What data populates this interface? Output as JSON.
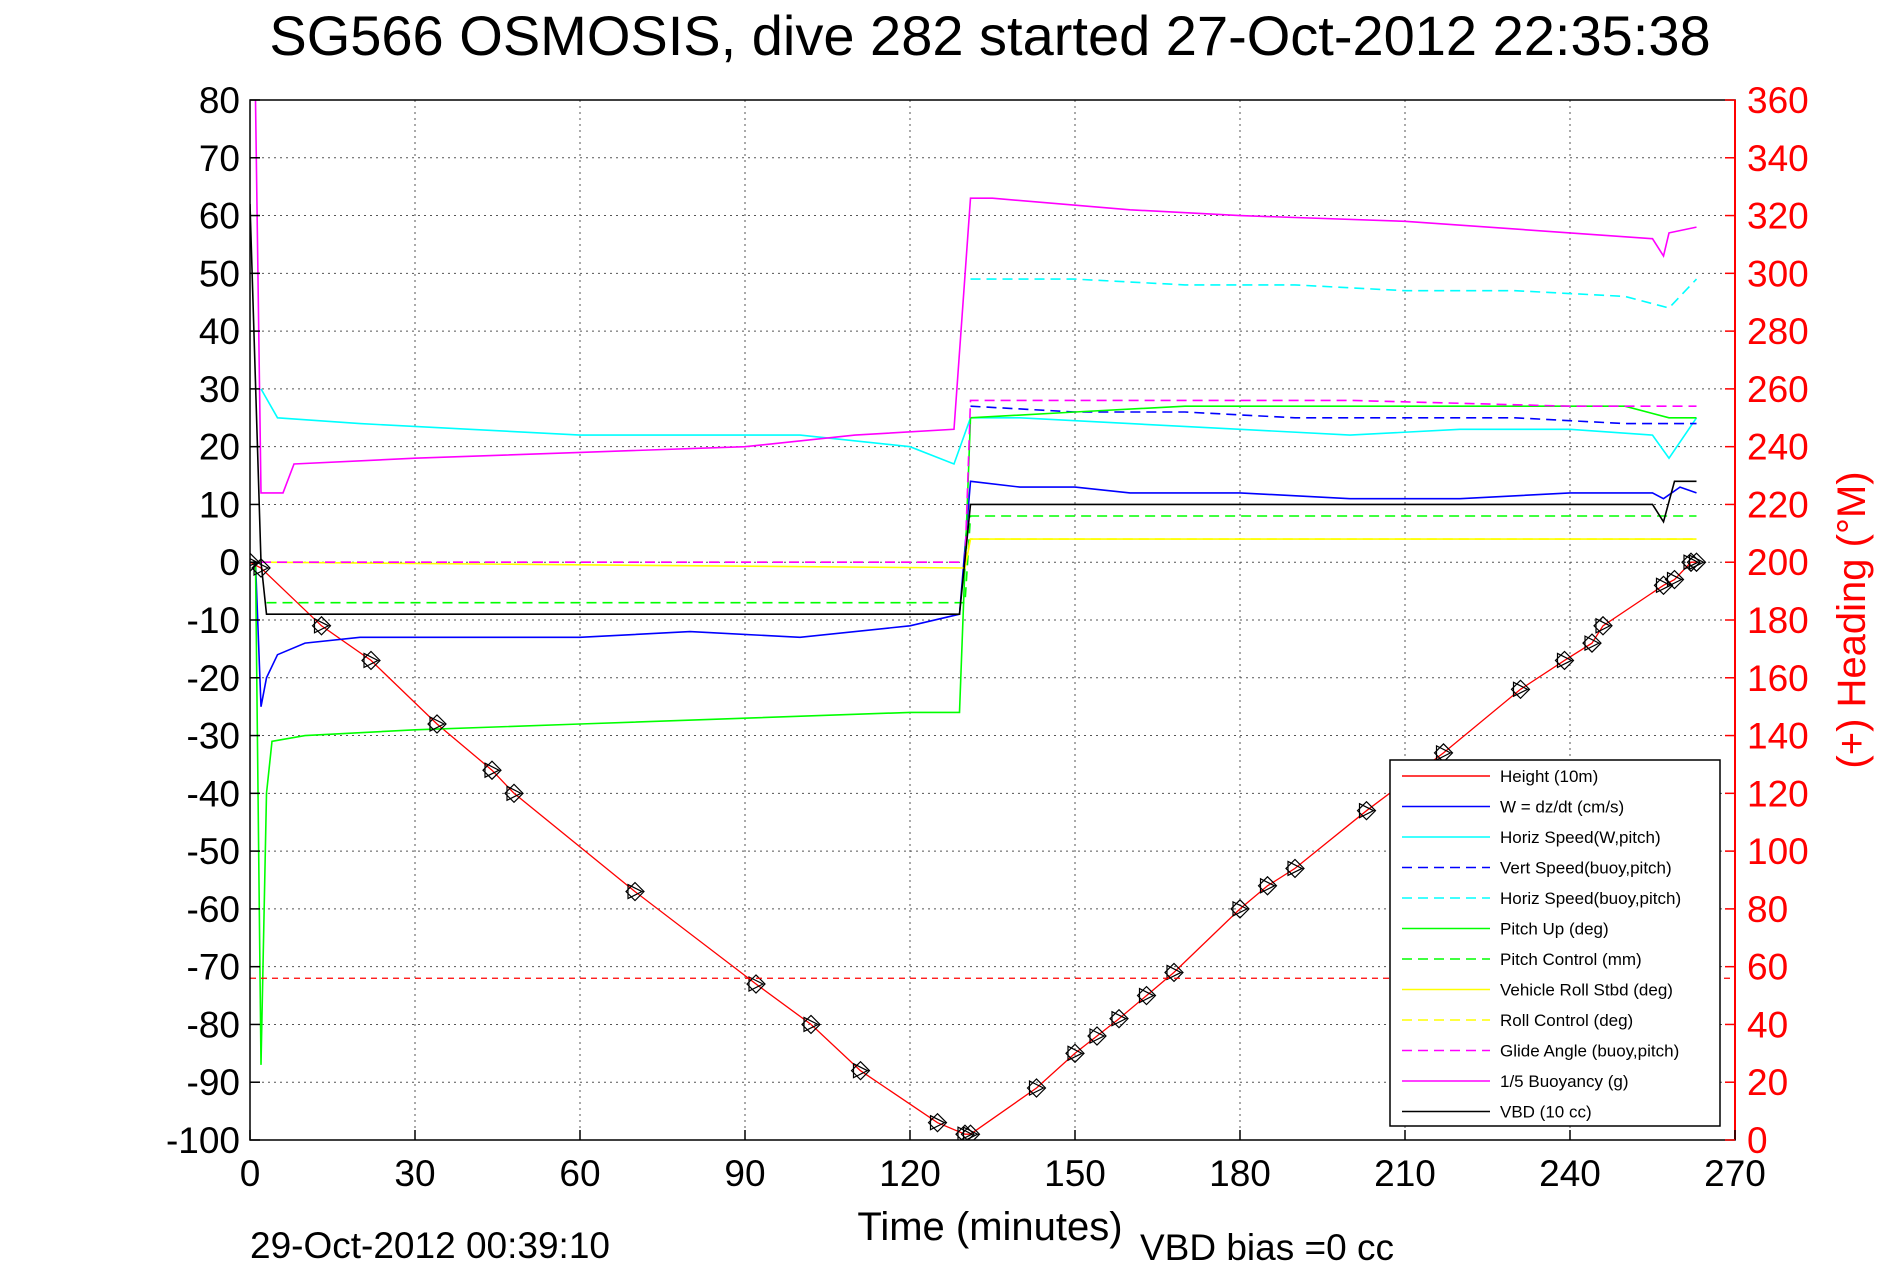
{
  "chart_data": {
    "type": "line",
    "title": "SG566 OSMOSIS, dive 282 started 27-Oct-2012 22:35:38",
    "xlabel": "Time (minutes)",
    "ylabel_right": "(+) Heading (°M)",
    "xlim": [
      0,
      270
    ],
    "ylim_left": [
      -100,
      80
    ],
    "ylim_right": [
      0,
      360
    ],
    "xticks": [
      0,
      30,
      60,
      90,
      120,
      150,
      180,
      210,
      240,
      270
    ],
    "yticks_left": [
      80,
      70,
      60,
      50,
      40,
      30,
      20,
      10,
      0,
      -10,
      -20,
      -30,
      -40,
      -50,
      -60,
      -70,
      -80,
      -90,
      -100
    ],
    "yticks_right": [
      360,
      340,
      320,
      300,
      280,
      260,
      240,
      220,
      200,
      180,
      160,
      140,
      120,
      100,
      80,
      60,
      40,
      20,
      0
    ],
    "grid": true,
    "legend_position": "bottom-right",
    "footer_left": "29-Oct-2012 00:39:10",
    "footer_right": "VBD bias =0 cc",
    "heading_mean": 56,
    "series": [
      {
        "name": "Height (10m)",
        "color": "#ff0000",
        "style": "solid",
        "values": [
          [
            0,
            0
          ],
          [
            2,
            -1
          ],
          [
            13,
            -11
          ],
          [
            22,
            -17
          ],
          [
            34,
            -28
          ],
          [
            44,
            -36
          ],
          [
            48,
            -40
          ],
          [
            70,
            -57
          ],
          [
            92,
            -73
          ],
          [
            102,
            -80
          ],
          [
            111,
            -88
          ],
          [
            125,
            -97
          ],
          [
            130,
            -99
          ],
          [
            131,
            -99
          ],
          [
            143,
            -91
          ],
          [
            150,
            -85
          ],
          [
            154,
            -82
          ],
          [
            158,
            -79
          ],
          [
            163,
            -75
          ],
          [
            168,
            -71
          ],
          [
            180,
            -60
          ],
          [
            185,
            -56
          ],
          [
            190,
            -53
          ],
          [
            203,
            -43
          ],
          [
            217,
            -33
          ],
          [
            231,
            -22
          ],
          [
            239,
            -17
          ],
          [
            244,
            -14
          ],
          [
            246,
            -11
          ],
          [
            257,
            -4
          ],
          [
            259,
            -3
          ],
          [
            262,
            0
          ],
          [
            263,
            0
          ]
        ]
      },
      {
        "name": "W = dz/dt (cm/s)",
        "color": "#0000ff",
        "style": "solid",
        "values": [
          [
            1,
            0
          ],
          [
            2,
            -25
          ],
          [
            3,
            -20
          ],
          [
            5,
            -16
          ],
          [
            10,
            -14
          ],
          [
            20,
            -13
          ],
          [
            40,
            -13
          ],
          [
            60,
            -13
          ],
          [
            80,
            -12
          ],
          [
            100,
            -13
          ],
          [
            120,
            -11
          ],
          [
            129,
            -9
          ],
          [
            131,
            14
          ],
          [
            140,
            13
          ],
          [
            150,
            13
          ],
          [
            160,
            12
          ],
          [
            170,
            12
          ],
          [
            180,
            12
          ],
          [
            200,
            11
          ],
          [
            220,
            11
          ],
          [
            240,
            12
          ],
          [
            255,
            12
          ],
          [
            257,
            11
          ],
          [
            260,
            13
          ],
          [
            263,
            12
          ]
        ]
      },
      {
        "name": "Horiz Speed(W,pitch)",
        "color": "#00ffff",
        "style": "solid",
        "values": [
          [
            2,
            30
          ],
          [
            5,
            25
          ],
          [
            20,
            24
          ],
          [
            40,
            23
          ],
          [
            60,
            22
          ],
          [
            80,
            22
          ],
          [
            100,
            22
          ],
          [
            120,
            20
          ],
          [
            128,
            17
          ],
          [
            131,
            25
          ],
          [
            140,
            25
          ],
          [
            160,
            24
          ],
          [
            180,
            23
          ],
          [
            200,
            22
          ],
          [
            220,
            23
          ],
          [
            240,
            23
          ],
          [
            255,
            22
          ],
          [
            258,
            18
          ],
          [
            263,
            25
          ]
        ]
      },
      {
        "name": "Vert Speed(buoy,pitch)",
        "color": "#0000ff",
        "style": "dashed",
        "values": [
          [
            131,
            27
          ],
          [
            150,
            26
          ],
          [
            170,
            26
          ],
          [
            190,
            25
          ],
          [
            210,
            25
          ],
          [
            230,
            25
          ],
          [
            250,
            24
          ],
          [
            263,
            24
          ]
        ]
      },
      {
        "name": "Horiz Speed(buoy,pitch)",
        "color": "#00ffff",
        "style": "dashed",
        "values": [
          [
            131,
            49
          ],
          [
            150,
            49
          ],
          [
            170,
            48
          ],
          [
            190,
            48
          ],
          [
            210,
            47
          ],
          [
            230,
            47
          ],
          [
            250,
            46
          ],
          [
            258,
            44
          ],
          [
            263,
            49
          ]
        ]
      },
      {
        "name": "Pitch Up (deg)",
        "color": "#00ff00",
        "style": "solid",
        "values": [
          [
            1,
            0
          ],
          [
            2,
            -87
          ],
          [
            3,
            -40
          ],
          [
            4,
            -31
          ],
          [
            10,
            -30
          ],
          [
            30,
            -29
          ],
          [
            60,
            -28
          ],
          [
            90,
            -27
          ],
          [
            120,
            -26
          ],
          [
            129,
            -26
          ],
          [
            131,
            25
          ],
          [
            150,
            26
          ],
          [
            170,
            27
          ],
          [
            190,
            27
          ],
          [
            210,
            27
          ],
          [
            230,
            27
          ],
          [
            250,
            27
          ],
          [
            258,
            25
          ],
          [
            263,
            25
          ]
        ]
      },
      {
        "name": "Pitch Control (mm)",
        "color": "#00ff00",
        "style": "dashed",
        "values": [
          [
            3,
            -7
          ],
          [
            130,
            -7
          ],
          [
            131,
            8
          ],
          [
            263,
            8
          ]
        ]
      },
      {
        "name": "Vehicle Roll Stbd (deg)",
        "color": "#ffff00",
        "style": "solid",
        "values": [
          [
            2,
            0
          ],
          [
            130,
            -1
          ],
          [
            131,
            4
          ],
          [
            263,
            4
          ]
        ]
      },
      {
        "name": "Roll Control (deg)",
        "color": "#ffff00",
        "style": "dashed",
        "values": [
          [
            2,
            0
          ],
          [
            130,
            0
          ],
          [
            131,
            4
          ],
          [
            263,
            4
          ]
        ]
      },
      {
        "name": "Glide Angle (buoy,pitch)",
        "color": "#ff00ff",
        "style": "dashed",
        "values": [
          [
            2,
            0
          ],
          [
            130,
            0
          ],
          [
            131,
            28
          ],
          [
            160,
            28
          ],
          [
            200,
            28
          ],
          [
            240,
            27
          ],
          [
            263,
            27
          ]
        ]
      },
      {
        "name": "1/5 Buoyancy (g)",
        "color": "#ff00ff",
        "style": "solid",
        "values": [
          [
            1,
            80
          ],
          [
            2,
            12
          ],
          [
            6,
            12
          ],
          [
            8,
            17
          ],
          [
            30,
            18
          ],
          [
            60,
            19
          ],
          [
            90,
            20
          ],
          [
            110,
            22
          ],
          [
            128,
            23
          ],
          [
            131,
            63
          ],
          [
            135,
            63
          ],
          [
            160,
            61
          ],
          [
            180,
            60
          ],
          [
            210,
            59
          ],
          [
            240,
            57
          ],
          [
            255,
            56
          ],
          [
            257,
            53
          ],
          [
            258,
            57
          ],
          [
            263,
            58
          ]
        ]
      },
      {
        "name": "VBD (10 cc)",
        "color": "#000000",
        "style": "solid",
        "values": [
          [
            0,
            62
          ],
          [
            2,
            0
          ],
          [
            3,
            -9
          ],
          [
            129,
            -9
          ],
          [
            131,
            10
          ],
          [
            255,
            10
          ],
          [
            257,
            7
          ],
          [
            259,
            14
          ],
          [
            263,
            14
          ]
        ]
      }
    ]
  }
}
